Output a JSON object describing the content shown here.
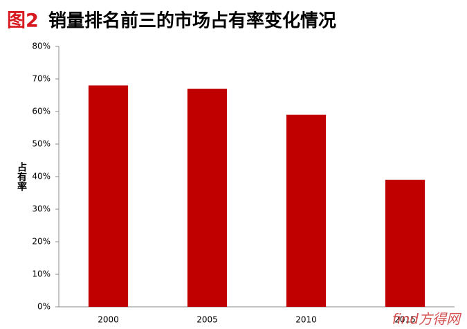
{
  "chart_data": {
    "type": "bar",
    "figure_label": "图2",
    "title": "销量排名前三的市场占有率变化情况",
    "y_label": "占有率",
    "categories": [
      "2000",
      "2005",
      "2010",
      "2015"
    ],
    "values": [
      68,
      67,
      59,
      39
    ],
    "color": "#c00000",
    "ylim": [
      0,
      80
    ],
    "yticks": [
      {
        "value": 0,
        "label": "0%"
      },
      {
        "value": 10,
        "label": "10%"
      },
      {
        "value": 20,
        "label": "20%"
      },
      {
        "value": 30,
        "label": "30%"
      },
      {
        "value": 40,
        "label": "40%"
      },
      {
        "value": 50,
        "label": "50%"
      },
      {
        "value": 60,
        "label": "60%"
      },
      {
        "value": 70,
        "label": "70%"
      },
      {
        "value": 80,
        "label": "80%"
      }
    ],
    "grid": false,
    "watermark": "find方得网"
  }
}
